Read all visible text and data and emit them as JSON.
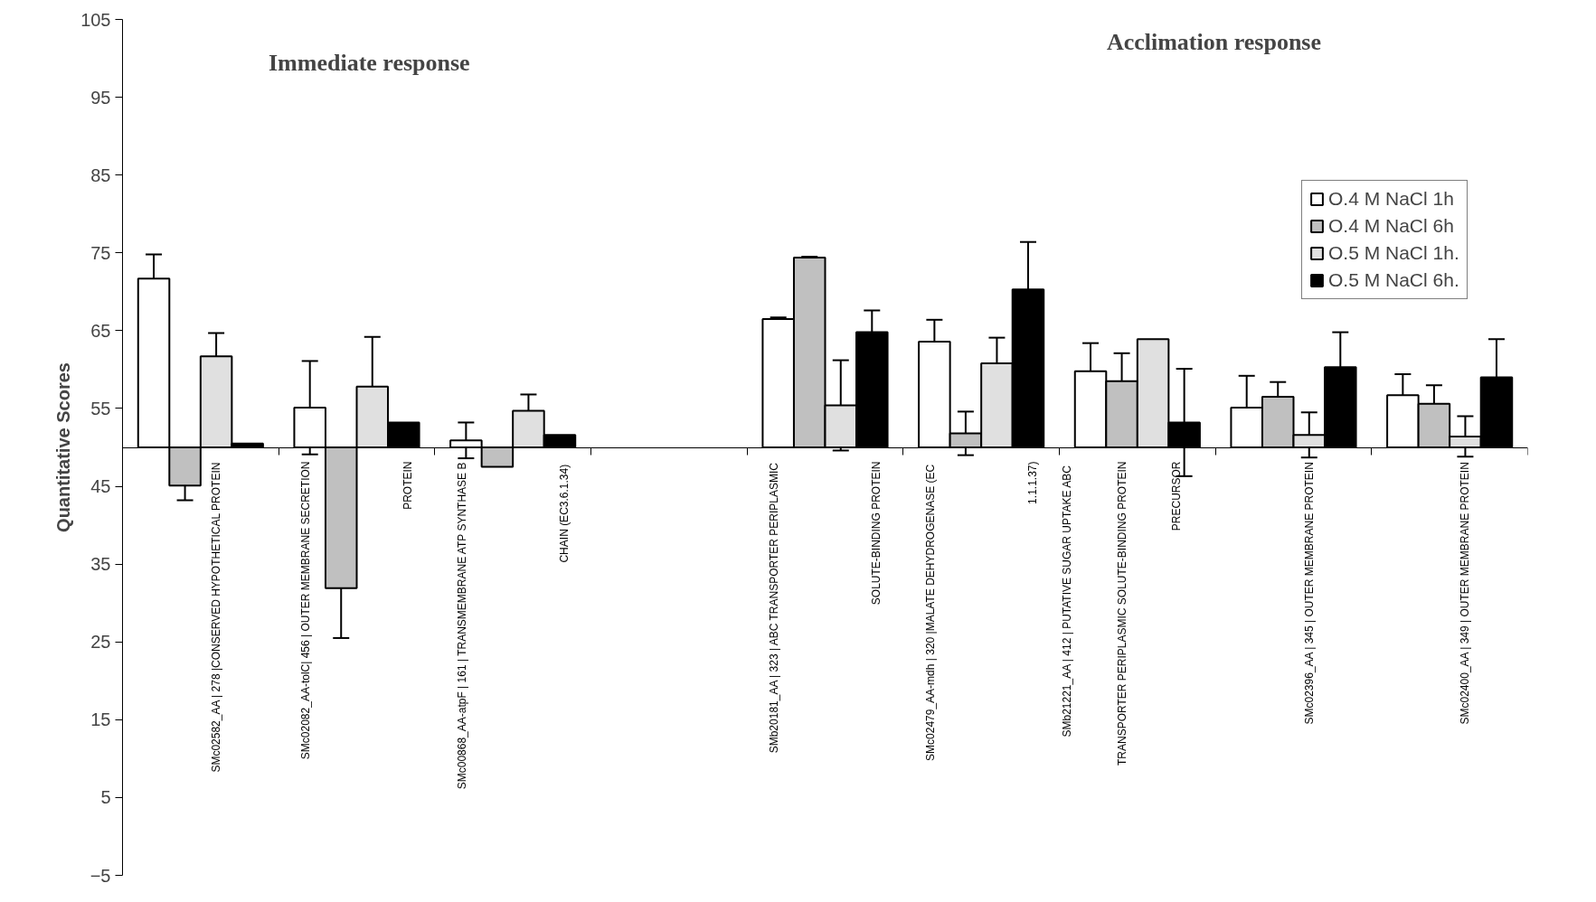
{
  "chart_data": {
    "type": "bar",
    "ylabel": "Quantitative Scores",
    "categories": [
      "SMc02582_AA | 278 |CONSERVED HYPOTHETICAL PROTEIN",
      "SMc02082_AA-tolC| 456 | OUTER MEMBRANE SECRETION\nPROTEIN",
      "SMc00868_AA-atpF | 161 | TRANSMEMBRANE ATP SYNTHASE B\nCHAIN  (EC3.6.1.34)",
      null,
      "SMb20181_AA | 323 | ABC TRANSPORTER PERIPLASMIC\nSOLUTE-BINDING PROTEIN",
      "SMc02479_AA-mdh | 320 |MALATE DEHYDROGENASE  (EC\n1.1.1.37)",
      "SMb21221_AA | 412 |  PUTATIVE SUGAR UPTAKE ABC\nTRANSPORTER PERIPLASMIC SOLUTE-BINDING PROTEIN\nPRECURSOR",
      "SMc02396_AA | 345 | OUTER MEMBRANE PROTEIN",
      "SMc02400_AA | 349 | OUTER MEMBRANE PROTEIN"
    ],
    "series": [
      {
        "name": "O.4 M NaCl 1h",
        "color": "#ffffff",
        "base": [
          50,
          50,
          50,
          null,
          50,
          50,
          50,
          50,
          50
        ],
        "values": [
          21.7,
          5.1,
          0.9,
          null,
          16.5,
          13.6,
          9.8,
          5.1,
          6.7
        ],
        "errors": [
          3.1,
          6,
          2.3,
          null,
          0.2,
          2.8,
          3.6,
          4.1,
          2.7
        ]
      },
      {
        "name": "O.4 M NaCl 6h",
        "color": "#c0c0c0",
        "base": [
          50,
          50,
          50,
          null,
          50,
          50,
          50,
          50,
          50
        ],
        "values": [
          -4.9,
          -18.1,
          -2.5,
          null,
          24.4,
          1.8,
          8.5,
          6.5,
          5.6
        ],
        "errors": [
          1.9,
          6.4,
          null,
          null,
          0.1,
          2.8,
          3.6,
          1.9,
          2.4
        ]
      },
      {
        "name": "O.5 M NaCl 1h.",
        "color": "#e0e0e0",
        "base": [
          50,
          50,
          50,
          null,
          50,
          50,
          50,
          50,
          50
        ],
        "values": [
          11.7,
          7.8,
          4.7,
          null,
          5.4,
          10.8,
          13.9,
          1.6,
          1.4
        ],
        "errors": [
          3,
          6.4,
          2.1,
          null,
          5.8,
          3.3,
          null,
          2.9,
          2.6
        ]
      },
      {
        "name": "O.5 M NaCl 6h.",
        "color": "#000000",
        "base": [
          50,
          50,
          50,
          null,
          50,
          50,
          50,
          50,
          50
        ],
        "values": [
          0.5,
          3.2,
          1.6,
          null,
          14.8,
          20.3,
          3.2,
          10.3,
          9.0
        ],
        "errors": [
          null,
          null,
          null,
          null,
          2.8,
          6.1,
          6.9,
          4.5,
          4.9
        ]
      }
    ],
    "ylim": [
      -5,
      105
    ],
    "yticks": [
      -5,
      5,
      15,
      25,
      35,
      45,
      55,
      65,
      75,
      85,
      95,
      105
    ],
    "annotations": [
      "Immediate response",
      "Acclimation response"
    ],
    "grid": false,
    "legend": "top right"
  }
}
